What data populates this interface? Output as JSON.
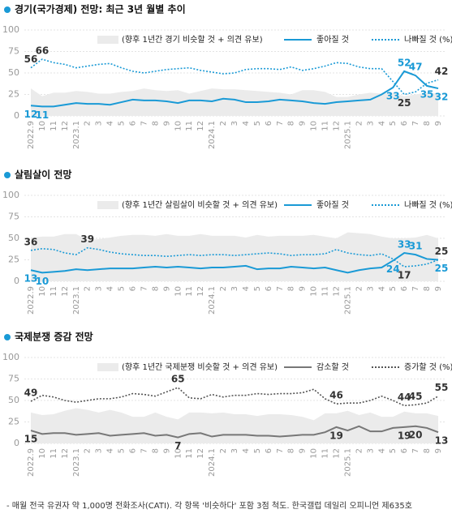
{
  "chart_data": [
    {
      "type": "line",
      "title": "경기(국가경제) 전망:  최근 3년 월별 추이",
      "categories": [
        "2022.9",
        "10",
        "11",
        "12",
        "2023.1",
        "2",
        "3",
        "4",
        "5",
        "6",
        "7",
        "8",
        "9",
        "10",
        "11",
        "12",
        "2024.1",
        "2",
        "3",
        "4",
        "5",
        "6",
        "7",
        "8",
        "9",
        "10",
        "11",
        "12",
        "2025.1",
        "2",
        "3",
        "4",
        "5",
        "6",
        "7",
        "8",
        "9"
      ],
      "ylim": [
        0,
        100
      ],
      "yticks": [
        0,
        25,
        50,
        75,
        100
      ],
      "grid": true,
      "series": [
        {
          "name": "(향후 1년간 경기 비슷할 것 + 의견 유보)",
          "type": "area",
          "color": "#ebebeb",
          "values": [
            32,
            23,
            27,
            27,
            29,
            28,
            26,
            26,
            28,
            29,
            32,
            30,
            29,
            30,
            26,
            29,
            32,
            31,
            31,
            30,
            29,
            28,
            27,
            25,
            30,
            30,
            28,
            22,
            22,
            25,
            27,
            26,
            27,
            23,
            25,
            27,
            26
          ]
        },
        {
          "name": "좋아질 것",
          "color": "#1a9ad6",
          "dash": false,
          "label_color": "#1a9ad6",
          "values": [
            12,
            11,
            11,
            13,
            15,
            14,
            14,
            13,
            16,
            19,
            18,
            18,
            17,
            15,
            18,
            18,
            17,
            20,
            19,
            16,
            16,
            17,
            19,
            18,
            17,
            15,
            14,
            16,
            17,
            18,
            19,
            25,
            33,
            52,
            47,
            35,
            32
          ],
          "value_labels": [
            "12",
            "11",
            null,
            null,
            null,
            null,
            null,
            null,
            null,
            null,
            null,
            null,
            null,
            null,
            null,
            null,
            null,
            null,
            null,
            null,
            null,
            null,
            null,
            null,
            null,
            null,
            null,
            null,
            null,
            null,
            null,
            null,
            "33",
            "52",
            "47",
            "35",
            "32"
          ]
        },
        {
          "name": "나빠질 것 (%)",
          "color": "#1a9ad6",
          "dash": true,
          "label_color": "#333333",
          "values": [
            56,
            66,
            62,
            60,
            56,
            58,
            60,
            61,
            56,
            52,
            50,
            52,
            54,
            55,
            56,
            53,
            51,
            49,
            50,
            54,
            55,
            55,
            54,
            57,
            53,
            55,
            58,
            62,
            61,
            57,
            55,
            55,
            40,
            25,
            28,
            38,
            42
          ],
          "value_labels": [
            "56",
            "66",
            null,
            null,
            null,
            null,
            null,
            null,
            null,
            null,
            null,
            null,
            null,
            null,
            null,
            null,
            null,
            null,
            null,
            null,
            null,
            null,
            null,
            null,
            null,
            null,
            null,
            null,
            null,
            null,
            null,
            null,
            null,
            "25",
            null,
            null,
            "42"
          ]
        }
      ]
    },
    {
      "type": "line",
      "title": "살림살이 전망",
      "categories": [
        "2022.9",
        "10",
        "11",
        "12",
        "2023.1",
        "2",
        "3",
        "4",
        "5",
        "6",
        "7",
        "8",
        "9",
        "10",
        "11",
        "12",
        "2024.1",
        "2",
        "3",
        "4",
        "5",
        "6",
        "7",
        "8",
        "9",
        "10",
        "11",
        "12",
        "2025.1",
        "2",
        "3",
        "4",
        "5",
        "6",
        "7",
        "8",
        "9"
      ],
      "ylim": [
        0,
        100
      ],
      "yticks": [
        0,
        25,
        50,
        75,
        100
      ],
      "grid": true,
      "series": [
        {
          "name": "(향후 1년간 살림살이 비슷할 것 + 의견 유보)",
          "type": "area",
          "color": "#ebebeb",
          "values": [
            51,
            52,
            52,
            55,
            55,
            48,
            49,
            51,
            53,
            54,
            54,
            53,
            55,
            53,
            53,
            55,
            53,
            53,
            53,
            51,
            54,
            52,
            53,
            53,
            53,
            54,
            52,
            50,
            57,
            56,
            55,
            52,
            50,
            50,
            51,
            54,
            50
          ]
        },
        {
          "name": "좋아질 것",
          "color": "#1a9ad6",
          "dash": false,
          "label_color": "#1a9ad6",
          "values": [
            13,
            10,
            11,
            12,
            14,
            13,
            14,
            15,
            15,
            15,
            16,
            17,
            16,
            17,
            16,
            15,
            16,
            16,
            17,
            18,
            14,
            15,
            15,
            17,
            16,
            15,
            16,
            13,
            10,
            13,
            15,
            16,
            24,
            33,
            31,
            26,
            25
          ],
          "value_labels": [
            "13",
            "10",
            null,
            null,
            null,
            null,
            null,
            null,
            null,
            null,
            null,
            null,
            null,
            null,
            null,
            null,
            null,
            null,
            null,
            null,
            null,
            null,
            null,
            null,
            null,
            null,
            null,
            null,
            null,
            null,
            null,
            null,
            "24",
            "33",
            "31",
            null,
            "25"
          ]
        },
        {
          "name": "나빠질 것 (%)",
          "color": "#1a9ad6",
          "dash": true,
          "label_color": "#333333",
          "values": [
            36,
            38,
            37,
            33,
            31,
            39,
            37,
            34,
            32,
            31,
            30,
            30,
            29,
            30,
            31,
            30,
            31,
            31,
            30,
            31,
            32,
            33,
            32,
            30,
            31,
            31,
            32,
            37,
            33,
            31,
            30,
            32,
            26,
            17,
            18,
            20,
            25
          ],
          "value_labels": [
            "36",
            null,
            null,
            null,
            null,
            "39",
            null,
            null,
            null,
            null,
            null,
            null,
            null,
            null,
            null,
            null,
            null,
            null,
            null,
            null,
            null,
            null,
            null,
            null,
            null,
            null,
            null,
            null,
            null,
            null,
            null,
            null,
            null,
            "17",
            null,
            null,
            "25"
          ]
        }
      ]
    },
    {
      "type": "line",
      "title": "국제분쟁 증감 전망",
      "categories": [
        "2022.9",
        "10",
        "11",
        "12",
        "2023.1",
        "2",
        "3",
        "4",
        "5",
        "6",
        "7",
        "8",
        "9",
        "10",
        "11",
        "12",
        "2024.1",
        "2",
        "3",
        "4",
        "5",
        "6",
        "7",
        "8",
        "9",
        "10",
        "11",
        "12",
        "2025.1",
        "2",
        "3",
        "4",
        "5",
        "6",
        "7",
        "8",
        "9"
      ],
      "ylim": [
        0,
        100
      ],
      "yticks": [
        0,
        25,
        50,
        75,
        100
      ],
      "grid": true,
      "series": [
        {
          "name": "(향후 1년간 국제분쟁 비슷할 것 + 의견 유보)",
          "type": "area",
          "color": "#ebebeb",
          "values": [
            36,
            33,
            34,
            38,
            41,
            39,
            36,
            39,
            36,
            31,
            31,
            36,
            31,
            28,
            36,
            36,
            35,
            36,
            34,
            34,
            32,
            34,
            34,
            33,
            31,
            27,
            35,
            35,
            38,
            33,
            36,
            31,
            31,
            37,
            35,
            35,
            32
          ]
        },
        {
          "name": "감소할 것",
          "color": "#777777",
          "dash": false,
          "label_color": "#333333",
          "values": [
            15,
            11,
            12,
            12,
            10,
            11,
            12,
            9,
            10,
            11,
            12,
            9,
            10,
            7,
            11,
            12,
            8,
            10,
            10,
            10,
            9,
            9,
            8,
            9,
            10,
            10,
            13,
            19,
            15,
            20,
            14,
            14,
            18,
            19,
            20,
            18,
            13
          ],
          "value_labels": [
            "15",
            null,
            null,
            null,
            null,
            null,
            null,
            null,
            null,
            null,
            null,
            null,
            null,
            "7",
            null,
            null,
            null,
            null,
            null,
            null,
            null,
            null,
            null,
            null,
            null,
            null,
            null,
            "19",
            null,
            null,
            null,
            null,
            null,
            "19",
            "20",
            null,
            "13"
          ]
        },
        {
          "name": "증가할 것 (%)",
          "color": "#555555",
          "dash": true,
          "label_color": "#333333",
          "values": [
            49,
            56,
            54,
            50,
            48,
            50,
            52,
            52,
            54,
            58,
            57,
            55,
            60,
            65,
            53,
            52,
            57,
            54,
            56,
            56,
            58,
            57,
            58,
            58,
            59,
            63,
            52,
            46,
            47,
            47,
            50,
            55,
            50,
            44,
            45,
            47,
            55
          ],
          "value_labels": [
            "49",
            null,
            null,
            null,
            null,
            null,
            null,
            null,
            null,
            null,
            null,
            null,
            null,
            "65",
            null,
            null,
            null,
            null,
            null,
            null,
            null,
            null,
            null,
            null,
            null,
            null,
            null,
            "46",
            null,
            null,
            null,
            null,
            null,
            "44",
            "45",
            null,
            "55"
          ]
        }
      ]
    }
  ],
  "footnote": "- 매월 전국 유권자 약 1,000명 전화조사(CATI). 각 항목 '비슷하다' 포함 3점 척도. 한국갤럽 데일리 오피니언 제635호"
}
